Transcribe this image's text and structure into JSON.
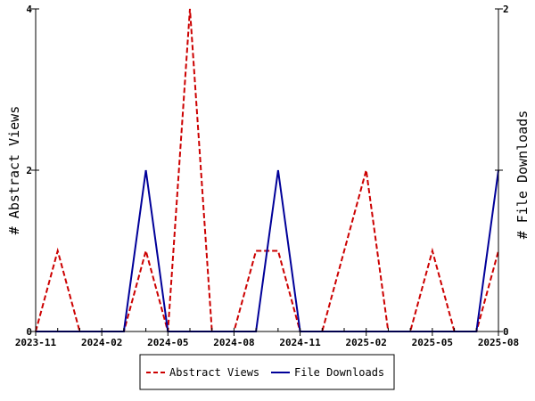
{
  "chart_data": {
    "type": "line",
    "x_ticks": [
      "2023-11",
      "2024-02",
      "2024-05",
      "2024-08",
      "2024-11",
      "2025-02",
      "2025-05",
      "2025-08"
    ],
    "x": [
      "2023-11",
      "2023-12",
      "2024-01",
      "2024-02",
      "2024-03",
      "2024-04",
      "2024-05",
      "2024-06",
      "2024-07",
      "2024-08",
      "2024-09",
      "2024-10",
      "2024-11",
      "2024-12",
      "2025-01",
      "2025-02",
      "2025-03",
      "2025-04",
      "2025-05",
      "2025-06",
      "2025-07",
      "2025-08"
    ],
    "series": [
      {
        "name": "Abstract Views",
        "axis": "left",
        "color": "#cc0000",
        "dash": "dashed",
        "values": [
          0,
          1,
          0,
          0,
          0,
          1,
          0,
          4,
          0,
          0,
          1,
          1,
          0,
          0,
          1,
          2,
          0,
          0,
          1,
          0,
          0,
          1
        ]
      },
      {
        "name": "File Downloads",
        "axis": "right",
        "color": "#000099",
        "dash": "solid",
        "values": [
          0,
          0,
          0,
          0,
          0,
          1,
          0,
          0,
          0,
          0,
          0,
          1,
          0,
          0,
          0,
          0,
          0,
          0,
          0,
          0,
          0,
          1
        ]
      }
    ],
    "y_left": {
      "label": "# Abstract Views",
      "range": [
        0,
        4
      ],
      "ticks": [
        "0",
        "2",
        "4"
      ]
    },
    "y_right": {
      "label": "# File Downloads",
      "range": [
        0,
        2
      ],
      "ticks": [
        "0",
        "1",
        "2"
      ],
      "tick_labels": [
        "0",
        "",
        "2"
      ]
    },
    "grid": false,
    "legend_position": "bottom-center"
  }
}
